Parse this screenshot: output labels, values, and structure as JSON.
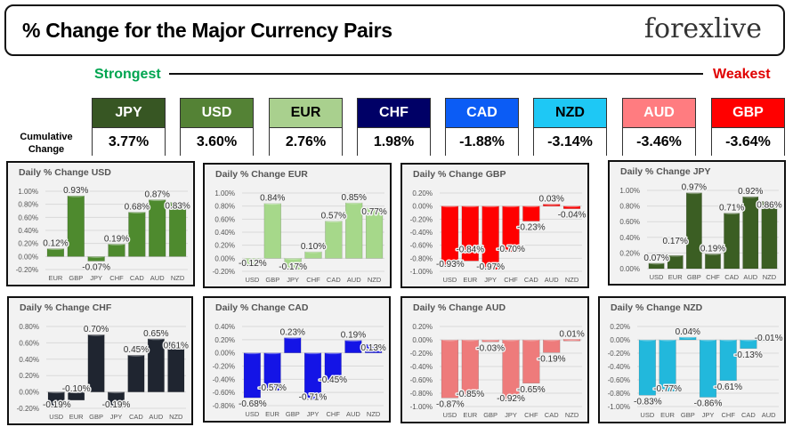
{
  "header": {
    "title": "% Change for the Major Currency Pairs",
    "logo": "forexlive",
    "strongest": "Strongest",
    "weakest": "Weakest",
    "cumulative_label": "Cumulative Change"
  },
  "currencies": [
    {
      "code": "JPY",
      "value": "3.77%",
      "color": "#375623"
    },
    {
      "code": "USD",
      "value": "3.60%",
      "color": "#548235"
    },
    {
      "code": "EUR",
      "value": "2.76%",
      "color": "#a9d08e"
    },
    {
      "code": "CHF",
      "value": "1.98%",
      "color": "#000066"
    },
    {
      "code": "CAD",
      "value": "-1.88%",
      "color": "#0b5cf5"
    },
    {
      "code": "NZD",
      "value": "-3.14%",
      "color": "#1ec8f5"
    },
    {
      "code": "AUD",
      "value": "-3.46%",
      "color": "#ff7c80"
    },
    {
      "code": "GBP",
      "value": "-3.64%",
      "color": "#ff0000"
    }
  ],
  "chart_data": [
    {
      "type": "bar",
      "title": "Daily % Change USD",
      "categories": [
        "EUR",
        "GBP",
        "JPY",
        "CHF",
        "CAD",
        "AUD",
        "NZD"
      ],
      "values": [
        0.12,
        0.93,
        -0.07,
        0.19,
        0.68,
        0.87,
        0.83
      ],
      "ylim": [
        -0.2,
        1.0
      ],
      "yticks": [
        "-0.20%",
        "0.00%",
        "0.20%",
        "0.40%",
        "0.60%",
        "0.80%",
        "1.00%"
      ],
      "color": "#4e8a2e",
      "grid": true
    },
    {
      "type": "bar",
      "title": "Daily % Change EUR",
      "categories": [
        "USD",
        "GBP",
        "JPY",
        "CHF",
        "CAD",
        "AUD",
        "NZD"
      ],
      "values": [
        -0.12,
        0.84,
        -0.17,
        0.1,
        0.57,
        0.85,
        0.77
      ],
      "ylim": [
        -0.2,
        1.0
      ],
      "yticks": [
        "-0.20%",
        "0.00%",
        "0.20%",
        "0.40%",
        "0.60%",
        "0.80%",
        "1.00%"
      ],
      "color": "#a6d88a",
      "grid": true
    },
    {
      "type": "bar",
      "title": "Daily % Change GBP",
      "categories": [
        "USD",
        "EUR",
        "JPY",
        "CHF",
        "CAD",
        "AUD",
        "NZD"
      ],
      "values": [
        -0.93,
        -0.84,
        -0.97,
        -0.7,
        -0.23,
        0.03,
        -0.04
      ],
      "ylim": [
        -1.0,
        0.2
      ],
      "yticks": [
        "-1.00%",
        "-0.80%",
        "-0.60%",
        "-0.40%",
        "-0.20%",
        "0.00%",
        "0.20%"
      ],
      "color": "#ff0000",
      "grid": true
    },
    {
      "type": "bar",
      "title": "Daily % Change JPY",
      "categories": [
        "USD",
        "EUR",
        "GBP",
        "CHF",
        "CAD",
        "AUD",
        "NZD"
      ],
      "values": [
        0.07,
        0.17,
        0.97,
        0.19,
        0.71,
        0.92,
        0.86
      ],
      "ylim": [
        0,
        1.0
      ],
      "yticks": [
        "0.00%",
        "0.20%",
        "0.40%",
        "0.60%",
        "0.80%",
        "1.00%"
      ],
      "color": "#3b5e23",
      "grid": true
    },
    {
      "type": "bar",
      "title": "Daily % Change CHF",
      "categories": [
        "USD",
        "EUR",
        "GBP",
        "JPY",
        "CAD",
        "AUD",
        "NZD"
      ],
      "values": [
        -0.19,
        -0.1,
        0.7,
        -0.19,
        0.45,
        0.65,
        0.61
      ],
      "ylim": [
        -0.2,
        0.8
      ],
      "yticks": [
        "-0.20%",
        "0.00%",
        "0.20%",
        "0.40%",
        "0.60%",
        "0.80%"
      ],
      "color": "#1f2530",
      "grid": true
    },
    {
      "type": "bar",
      "title": "Daily % Change CAD",
      "categories": [
        "USD",
        "EUR",
        "GBP",
        "JPY",
        "CHF",
        "AUD",
        "NZD"
      ],
      "values": [
        -0.68,
        -0.57,
        0.23,
        -0.71,
        -0.45,
        0.19,
        0.13
      ],
      "ylim": [
        -0.8,
        0.4
      ],
      "yticks": [
        "-0.80%",
        "-0.60%",
        "-0.40%",
        "-0.20%",
        "0.00%",
        "0.20%",
        "0.40%"
      ],
      "color": "#1414e6",
      "grid": true
    },
    {
      "type": "bar",
      "title": "Daily % Change AUD",
      "categories": [
        "USD",
        "EUR",
        "GBP",
        "JPY",
        "CHF",
        "CAD",
        "NZD"
      ],
      "values": [
        -0.87,
        -0.85,
        -0.03,
        -0.92,
        -0.65,
        -0.19,
        0.01
      ],
      "ylim": [
        -1.0,
        0.2
      ],
      "yticks": [
        "-1.00%",
        "-0.80%",
        "-0.60%",
        "-0.40%",
        "-0.20%",
        "0.00%",
        "0.20%"
      ],
      "color": "#ee7b7b",
      "grid": true
    },
    {
      "type": "bar",
      "title": "Daily % Change NZD",
      "categories": [
        "USD",
        "EUR",
        "GBP",
        "JPY",
        "CHF",
        "CAD",
        "AUD"
      ],
      "values": [
        -0.83,
        -0.77,
        0.04,
        -0.86,
        -0.61,
        -0.13,
        -0.01
      ],
      "ylim": [
        -1.0,
        0.2
      ],
      "yticks": [
        "-1.00%",
        "-0.80%",
        "-0.60%",
        "-0.40%",
        "-0.20%",
        "0.00%",
        "0.20%"
      ],
      "color": "#22b8dc",
      "grid": true
    }
  ]
}
